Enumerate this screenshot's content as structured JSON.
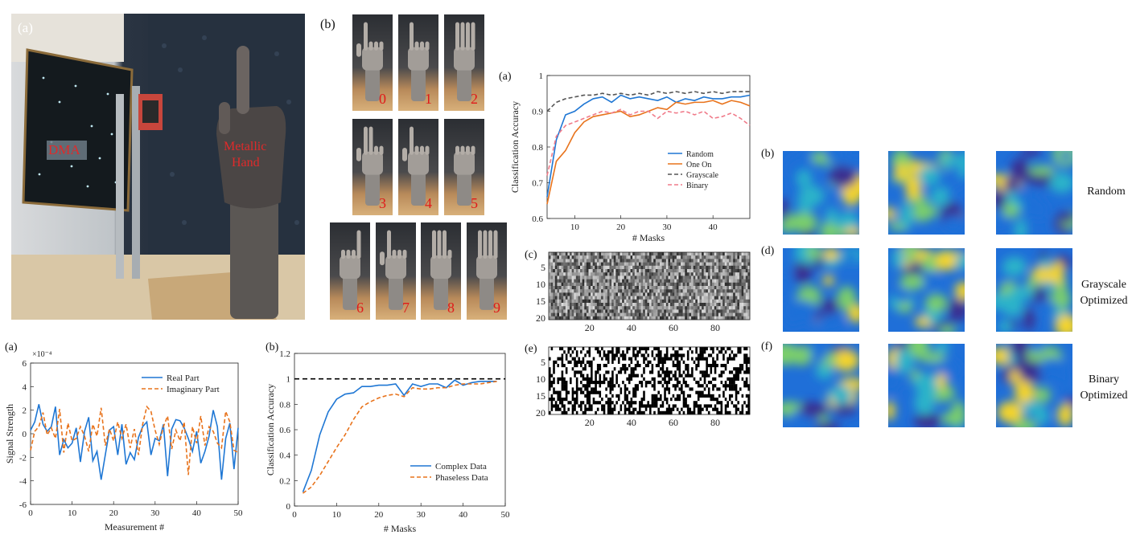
{
  "photo": {
    "panel_label": "(a)",
    "dma_label": "DMA",
    "hand_label_line1": "Metallic",
    "hand_label_line2": "Hand"
  },
  "gestures": {
    "panel_label": "(b)",
    "digits": [
      "0",
      "1",
      "2",
      "3",
      "4",
      "5",
      "6",
      "7",
      "8",
      "9"
    ]
  },
  "masks_panel": {
    "label_a": "(a)",
    "label_c": "(c)",
    "label_e": "(e)",
    "grid_yticks": [
      "5",
      "10",
      "15",
      "20"
    ],
    "grid_xticks": [
      "20",
      "40",
      "60",
      "80"
    ]
  },
  "fields": {
    "label_b": "(b)",
    "label_d": "(d)",
    "label_f": "(f)",
    "row1": "Random",
    "row2_line1": "Grayscale",
    "row2_line2": "Optimized",
    "row3_line1": "Binary",
    "row3_line2": "Optimized",
    "colors": [
      "#3b2f8f",
      "#1f6fd8",
      "#2bb3c9",
      "#7ccf6a",
      "#f4d42a"
    ]
  },
  "bottom_labels": {
    "a": "(a)",
    "b": "(b)"
  },
  "chart_data": [
    {
      "type": "line",
      "title": "",
      "xlabel": "# Masks",
      "ylabel": "Classification Accuracy",
      "xlim": [
        4,
        48
      ],
      "ylim": [
        0.6,
        1.0
      ],
      "xticks": [
        10,
        20,
        30,
        40
      ],
      "yticks": [
        0.6,
        0.7,
        0.8,
        0.9,
        1
      ],
      "yticklabels": [
        "0.6",
        "0.7",
        "0.8",
        "0.9",
        "1"
      ],
      "legend": "center-right",
      "x": [
        4,
        6,
        8,
        10,
        12,
        14,
        16,
        18,
        20,
        22,
        24,
        26,
        28,
        30,
        32,
        34,
        36,
        38,
        40,
        42,
        44,
        46,
        48
      ],
      "series": [
        {
          "name": "Random",
          "color": "#1f77d4",
          "dash": "",
          "values": [
            0.66,
            0.82,
            0.89,
            0.9,
            0.92,
            0.935,
            0.94,
            0.925,
            0.945,
            0.935,
            0.94,
            0.935,
            0.93,
            0.94,
            0.925,
            0.935,
            0.93,
            0.94,
            0.935,
            0.935,
            0.94,
            0.94,
            0.945
          ]
        },
        {
          "name": "One On",
          "color": "#e8731c",
          "dash": "",
          "values": [
            0.64,
            0.76,
            0.79,
            0.84,
            0.87,
            0.885,
            0.89,
            0.895,
            0.9,
            0.885,
            0.89,
            0.9,
            0.91,
            0.905,
            0.925,
            0.92,
            0.925,
            0.925,
            0.93,
            0.92,
            0.93,
            0.925,
            0.915
          ]
        },
        {
          "name": "Grayscale",
          "color": "#555555",
          "dash": "5,3",
          "values": [
            0.9,
            0.925,
            0.935,
            0.94,
            0.945,
            0.945,
            0.95,
            0.945,
            0.95,
            0.945,
            0.95,
            0.945,
            0.955,
            0.95,
            0.955,
            0.95,
            0.955,
            0.95,
            0.955,
            0.95,
            0.955,
            0.955,
            0.955
          ]
        },
        {
          "name": "Binary",
          "color": "#f07b8a",
          "dash": "5,3",
          "values": [
            0.72,
            0.83,
            0.86,
            0.87,
            0.88,
            0.89,
            0.9,
            0.895,
            0.905,
            0.89,
            0.9,
            0.9,
            0.88,
            0.9,
            0.895,
            0.9,
            0.89,
            0.9,
            0.88,
            0.885,
            0.895,
            0.88,
            0.86
          ]
        }
      ]
    },
    {
      "type": "line",
      "title": "",
      "xlabel": "Measurement #",
      "ylabel": "Signal Strength",
      "exponent_label": "×10⁻⁴",
      "xlim": [
        0,
        50
      ],
      "ylim": [
        -6,
        6
      ],
      "xticks": [
        0,
        10,
        20,
        30,
        40,
        50
      ],
      "yticks": [
        -6,
        -4,
        -2,
        0,
        2,
        4,
        6
      ],
      "legend": "top-right",
      "x": [
        0,
        1,
        2,
        3,
        4,
        5,
        6,
        7,
        8,
        9,
        10,
        11,
        12,
        13,
        14,
        15,
        16,
        17,
        18,
        19,
        20,
        21,
        22,
        23,
        24,
        25,
        26,
        27,
        28,
        29,
        30,
        31,
        32,
        33,
        34,
        35,
        36,
        37,
        38,
        39,
        40,
        41,
        42,
        43,
        44,
        45,
        46,
        47,
        48,
        49,
        50
      ],
      "series": [
        {
          "name": "Real Part",
          "color": "#1f77d4",
          "dash": "",
          "values": [
            0.3,
            1.0,
            2.5,
            0.8,
            0.2,
            0.6,
            2.3,
            -1.8,
            -0.5,
            -1.2,
            -0.8,
            0.5,
            -2.4,
            0.2,
            1.4,
            -2.3,
            -1.5,
            -3.9,
            -1.8,
            0.3,
            0.6,
            -1.8,
            0.8,
            -2.6,
            -1.6,
            -2.2,
            -0.3,
            0.6,
            1.0,
            -1.8,
            -0.4,
            -0.6,
            0.8,
            -3.6,
            0.4,
            1.2,
            1.1,
            0.5,
            -0.4,
            -1.5,
            0.2,
            -2.5,
            -1.5,
            -0.2,
            2.0,
            0.6,
            -3.9,
            -0.4,
            0.9,
            -3.0,
            0.5
          ]
        },
        {
          "name": "Imaginary Part",
          "color": "#e8731c",
          "dash": "5,3",
          "values": [
            -1.4,
            0.2,
            0.6,
            1.8,
            -0.1,
            0.5,
            -0.4,
            2.1,
            -1.6,
            0.9,
            -0.6,
            -0.4,
            0.6,
            -0.2,
            -1.5,
            0.8,
            -0.2,
            2.2,
            -1.0,
            0.4,
            -0.6,
            1.0,
            -0.4,
            0.8,
            -1.2,
            0.4,
            -1.8,
            0.8,
            2.3,
            1.9,
            0.3,
            -0.9,
            0.6,
            1.5,
            -1.3,
            0.3,
            -0.6,
            1.0,
            -3.5,
            0.6,
            -0.8,
            1.5,
            -1.0,
            0.6,
            0.2,
            -0.8,
            -1.2,
            1.9,
            1.0,
            -1.4,
            -1.6
          ]
        }
      ]
    },
    {
      "type": "line",
      "title": "",
      "xlabel": "# Masks",
      "ylabel": "Classification Accuracy",
      "xlim": [
        0,
        50
      ],
      "ylim": [
        0,
        1.2
      ],
      "xticks": [
        0,
        10,
        20,
        30,
        40,
        50
      ],
      "yticks": [
        0,
        0.2,
        0.4,
        0.6,
        0.8,
        1,
        1.2
      ],
      "yticklabels": [
        "0",
        "0.2",
        "0.4",
        "0.6",
        "0.8",
        "1",
        "1.2"
      ],
      "reference_line": 1.0,
      "legend": "bottom-right",
      "x": [
        2,
        4,
        6,
        8,
        10,
        12,
        14,
        16,
        18,
        20,
        22,
        24,
        26,
        28,
        30,
        32,
        34,
        36,
        38,
        40,
        42,
        44,
        46,
        48
      ],
      "series": [
        {
          "name": "Complex Data",
          "color": "#1f77d4",
          "dash": "",
          "values": [
            0.11,
            0.28,
            0.56,
            0.74,
            0.84,
            0.88,
            0.89,
            0.94,
            0.94,
            0.95,
            0.95,
            0.96,
            0.87,
            0.96,
            0.94,
            0.96,
            0.96,
            0.93,
            0.99,
            0.95,
            0.97,
            0.98,
            0.98,
            0.98
          ]
        },
        {
          "name": "Phaseless Data",
          "color": "#e8731c",
          "dash": "5,3",
          "values": [
            0.1,
            0.15,
            0.24,
            0.35,
            0.46,
            0.56,
            0.68,
            0.78,
            0.82,
            0.85,
            0.87,
            0.88,
            0.86,
            0.93,
            0.92,
            0.92,
            0.93,
            0.93,
            0.95,
            0.96,
            0.96,
            0.96,
            0.97,
            0.98
          ]
        }
      ]
    }
  ]
}
